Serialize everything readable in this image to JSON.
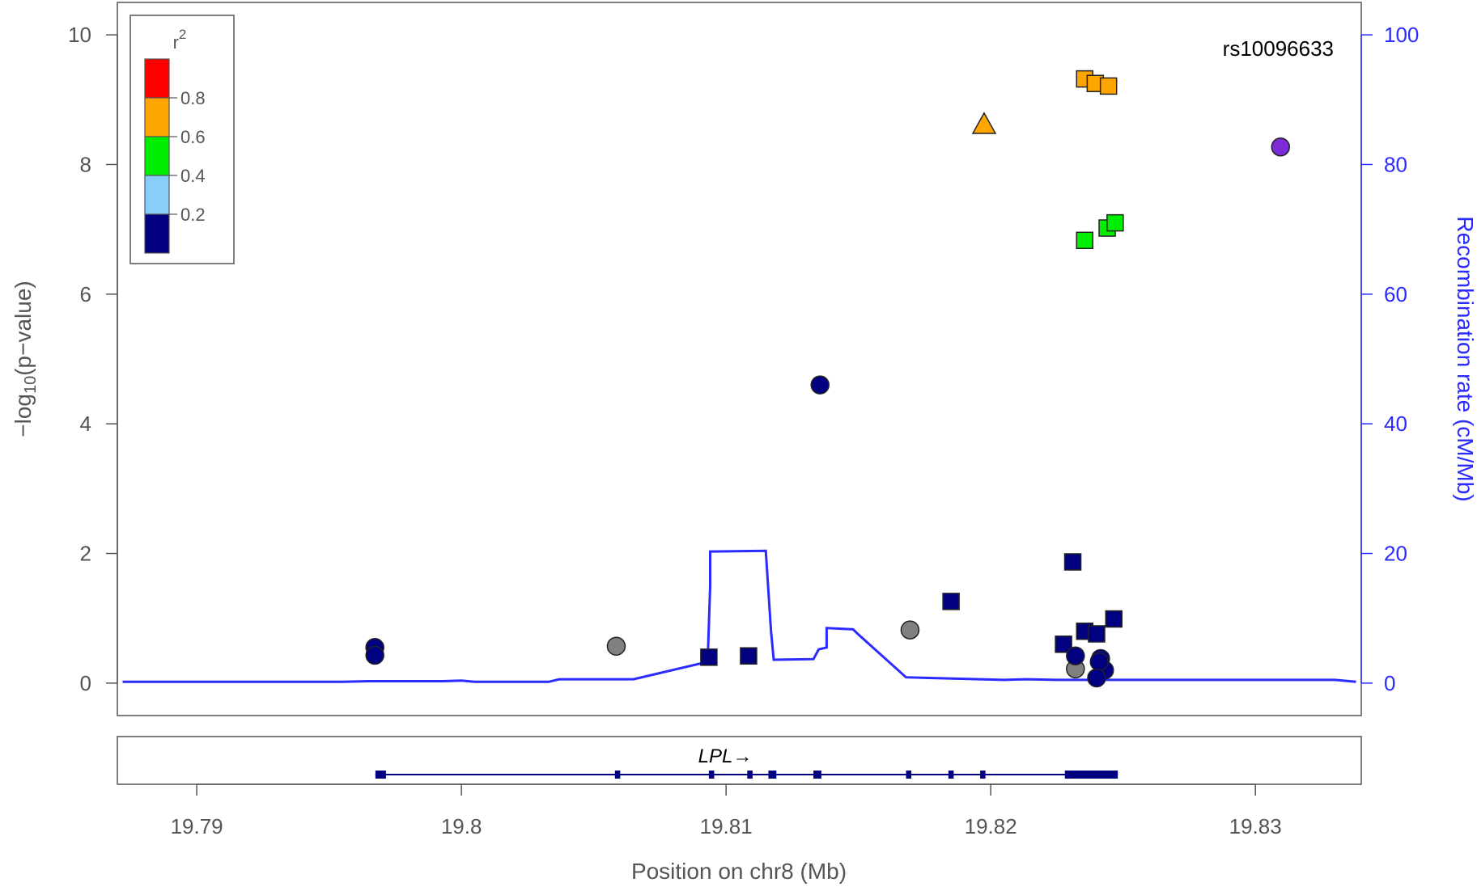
{
  "chart_data": {
    "type": "scatter",
    "title": "",
    "annotation": "rs10096633",
    "xlabel": "Position on chr8 (Mb)",
    "ylabel_parts": {
      "pre": "−log",
      "sub": "10",
      "post": "(p−value)"
    },
    "y2label": "Recombination rate (cM/Mb)",
    "xlim": [
      19.787,
      19.834
    ],
    "ylim": [
      -0.5,
      10.5
    ],
    "y2lim": [
      -5,
      105
    ],
    "x_ticks": [
      19.79,
      19.8,
      19.81,
      19.82,
      19.83
    ],
    "x_tick_labels": [
      "19.79",
      "19.8",
      "19.81",
      "19.82",
      "19.83"
    ],
    "y_ticks": [
      0,
      2,
      4,
      6,
      8,
      10
    ],
    "y_tick_labels": [
      "0",
      "2",
      "4",
      "6",
      "8",
      "10"
    ],
    "y2_ticks": [
      0,
      20,
      40,
      60,
      80,
      100
    ],
    "y2_tick_labels": [
      "0",
      "20",
      "40",
      "60",
      "80",
      "100"
    ],
    "grid": false,
    "legend": {
      "placement": "top-left",
      "title_base": "r",
      "title_sup": "2",
      "bins": [
        {
          "color": "#ff0000"
        },
        {
          "color": "#ffa500"
        },
        {
          "color": "#00ee00"
        },
        {
          "color": "#87cefa"
        },
        {
          "color": "#000080"
        }
      ],
      "labels": [
        "0.8",
        "0.6",
        "0.4",
        "0.2"
      ]
    },
    "colors": {
      "r2_08_1": "#ff0000",
      "r2_06_08": "#ffa500",
      "r2_04_06": "#00ee00",
      "r2_02_04": "#87cefa",
      "r2_00_02": "#000080",
      "no_ld": "#808080",
      "index_snp": "#7b2cd6",
      "recombination": "#2b2bff"
    },
    "points": [
      {
        "x": 19.79673,
        "y": 0.55,
        "shape": "circle",
        "color": "#000080"
      },
      {
        "x": 19.79673,
        "y": 0.43,
        "shape": "circle",
        "color": "#000080"
      },
      {
        "x": 19.80585,
        "y": 0.57,
        "shape": "circle",
        "color": "#808080"
      },
      {
        "x": 19.80935,
        "y": 0.4,
        "shape": "square",
        "color": "#000080"
      },
      {
        "x": 19.81085,
        "y": 0.42,
        "shape": "square",
        "color": "#000080"
      },
      {
        "x": 19.81355,
        "y": 4.6,
        "shape": "circle",
        "color": "#000080"
      },
      {
        "x": 19.81695,
        "y": 0.82,
        "shape": "circle",
        "color": "#808080"
      },
      {
        "x": 19.8185,
        "y": 1.26,
        "shape": "square",
        "color": "#000080"
      },
      {
        "x": 19.81975,
        "y": 8.62,
        "shape": "triangle",
        "color": "#ffa500"
      },
      {
        "x": 19.82355,
        "y": 9.32,
        "shape": "square",
        "color": "#ffa500"
      },
      {
        "x": 19.82395,
        "y": 9.25,
        "shape": "square",
        "color": "#ffa500"
      },
      {
        "x": 19.82445,
        "y": 9.21,
        "shape": "square",
        "color": "#ffa500"
      },
      {
        "x": 19.82355,
        "y": 6.83,
        "shape": "square",
        "color": "#00ee00"
      },
      {
        "x": 19.8244,
        "y": 7.02,
        "shape": "square",
        "color": "#00ee00"
      },
      {
        "x": 19.8247,
        "y": 7.1,
        "shape": "square",
        "color": "#00ee00"
      },
      {
        "x": 19.8231,
        "y": 1.87,
        "shape": "square",
        "color": "#000080"
      },
      {
        "x": 19.82465,
        "y": 0.99,
        "shape": "square",
        "color": "#000080"
      },
      {
        "x": 19.82355,
        "y": 0.8,
        "shape": "square",
        "color": "#000080"
      },
      {
        "x": 19.824,
        "y": 0.76,
        "shape": "square",
        "color": "#000080"
      },
      {
        "x": 19.82275,
        "y": 0.6,
        "shape": "square",
        "color": "#000080"
      },
      {
        "x": 19.8232,
        "y": 0.22,
        "shape": "circle",
        "color": "#808080"
      },
      {
        "x": 19.8232,
        "y": 0.42,
        "shape": "circle",
        "color": "#000080"
      },
      {
        "x": 19.82415,
        "y": 0.38,
        "shape": "circle",
        "color": "#000080"
      },
      {
        "x": 19.8243,
        "y": 0.2,
        "shape": "circle",
        "color": "#000080"
      },
      {
        "x": 19.8241,
        "y": 0.33,
        "shape": "circle",
        "color": "#000080"
      },
      {
        "x": 19.824,
        "y": 0.08,
        "shape": "circle",
        "color": "#000080"
      },
      {
        "x": 19.83095,
        "y": 8.27,
        "shape": "circle",
        "color": "#7b2cd6"
      }
    ],
    "recombination_rate": {
      "name": "Recombination rate",
      "x": [
        19.7872,
        19.7955,
        19.7965,
        19.7993,
        19.8,
        19.8005,
        19.8012,
        19.8033,
        19.8037,
        19.8065,
        19.809,
        19.8093,
        19.8094,
        19.8094,
        19.8115,
        19.8117,
        19.8118,
        19.8133,
        19.8135,
        19.8138,
        19.8138,
        19.8148,
        19.815,
        19.8168,
        19.8205,
        19.8213,
        19.8225,
        19.83,
        19.833,
        19.8338
      ],
      "y": [
        0.2,
        0.2,
        0.3,
        0.3,
        0.4,
        0.2,
        0.2,
        0.2,
        0.6,
        0.6,
        3.0,
        3.0,
        15.0,
        20.3,
        20.4,
        8.0,
        3.6,
        3.7,
        5.2,
        5.5,
        8.5,
        8.3,
        7.5,
        0.9,
        0.5,
        0.6,
        0.5,
        0.5,
        0.5,
        0.2
      ]
    },
    "gene_track": {
      "gene_label": "LPL",
      "arrow": "→",
      "gene_start": 19.79675,
      "gene_end": 19.8248,
      "exons": [
        [
          19.79675,
          19.79715
        ],
        [
          19.8058,
          19.806
        ],
        [
          19.80935,
          19.80955
        ],
        [
          19.8108,
          19.811
        ],
        [
          19.8116,
          19.8119
        ],
        [
          19.8133,
          19.8136
        ],
        [
          19.8168,
          19.817
        ],
        [
          19.8184,
          19.8186
        ],
        [
          19.8196,
          19.8198
        ],
        [
          19.8228,
          19.8248
        ]
      ]
    }
  }
}
